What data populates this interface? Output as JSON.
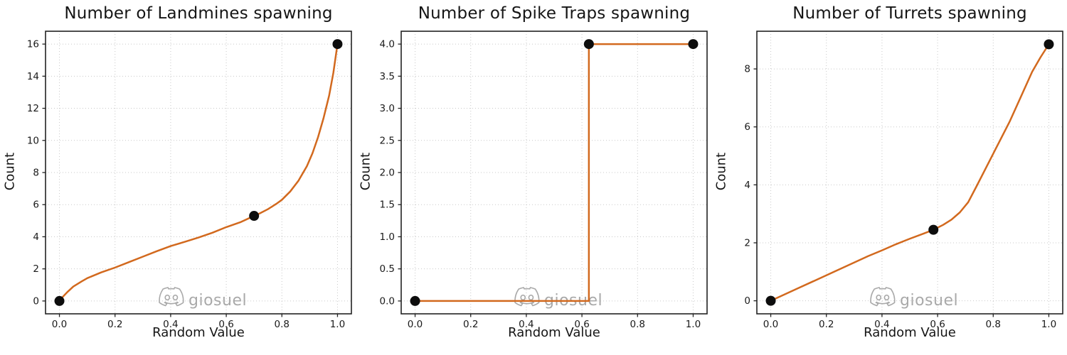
{
  "figure": {
    "watermark_label": "giosuel",
    "watermark_icon": "discord-logo"
  },
  "style": {
    "line_color": "#d2691e",
    "marker_color": "#0d0d0d",
    "grid_color": "#c9c9c9",
    "spine_color": "#222222",
    "tick_text_color": "#1a1a1a",
    "watermark_color": "#a9a9a9",
    "background": "#ffffff"
  },
  "chart_data": [
    {
      "id": "landmines",
      "type": "line",
      "title": "Number of Landmines spawning",
      "xlabel": "Random Value",
      "ylabel": "Count",
      "legend": "none",
      "grid": "dotted",
      "xlim": [
        -0.05,
        1.05
      ],
      "ylim": [
        -0.8,
        16.8
      ],
      "xticks": [
        0.0,
        0.2,
        0.4,
        0.6,
        0.8,
        1.0
      ],
      "xtick_labels": [
        "0.0",
        "0.2",
        "0.4",
        "0.6",
        "0.8",
        "1.0"
      ],
      "yticks": [
        0,
        2,
        4,
        6,
        8,
        10,
        12,
        14,
        16
      ],
      "ytick_labels": [
        "0",
        "2",
        "4",
        "6",
        "8",
        "10",
        "12",
        "14",
        "16"
      ],
      "curve": [
        [
          0,
          0
        ],
        [
          0.01,
          0.22
        ],
        [
          0.03,
          0.58
        ],
        [
          0.05,
          0.9
        ],
        [
          0.08,
          1.22
        ],
        [
          0.1,
          1.42
        ],
        [
          0.15,
          1.78
        ],
        [
          0.2,
          2.08
        ],
        [
          0.25,
          2.42
        ],
        [
          0.3,
          2.76
        ],
        [
          0.35,
          3.1
        ],
        [
          0.4,
          3.42
        ],
        [
          0.45,
          3.68
        ],
        [
          0.5,
          3.95
        ],
        [
          0.55,
          4.25
        ],
        [
          0.6,
          4.6
        ],
        [
          0.65,
          4.9
        ],
        [
          0.7,
          5.3
        ],
        [
          0.72,
          5.45
        ],
        [
          0.75,
          5.72
        ],
        [
          0.78,
          6.05
        ],
        [
          0.8,
          6.3
        ],
        [
          0.83,
          6.82
        ],
        [
          0.86,
          7.5
        ],
        [
          0.89,
          8.4
        ],
        [
          0.91,
          9.2
        ],
        [
          0.93,
          10.2
        ],
        [
          0.95,
          11.4
        ],
        [
          0.97,
          12.8
        ],
        [
          0.985,
          14.2
        ],
        [
          1.0,
          16
        ]
      ],
      "markers": [
        [
          0.0,
          0.0
        ],
        [
          0.7,
          5.3
        ],
        [
          1.0,
          16.0
        ]
      ]
    },
    {
      "id": "spike-traps",
      "type": "line",
      "title": "Number of Spike Traps spawning",
      "xlabel": "Random Value",
      "ylabel": "Count",
      "legend": "none",
      "grid": "dotted",
      "xlim": [
        -0.05,
        1.05
      ],
      "ylim": [
        -0.2,
        4.2
      ],
      "xticks": [
        0.0,
        0.2,
        0.4,
        0.6,
        0.8,
        1.0
      ],
      "xtick_labels": [
        "0.0",
        "0.2",
        "0.4",
        "0.6",
        "0.8",
        "1.0"
      ],
      "yticks": [
        0.0,
        0.5,
        1.0,
        1.5,
        2.0,
        2.5,
        3.0,
        3.5,
        4.0
      ],
      "ytick_labels": [
        "0.0",
        "0.5",
        "1.0",
        "1.5",
        "2.0",
        "2.5",
        "3.0",
        "3.5",
        "4.0"
      ],
      "curve": [
        [
          0,
          0
        ],
        [
          0.625,
          0
        ],
        [
          0.625,
          4
        ],
        [
          1,
          4
        ]
      ],
      "markers": [
        [
          0.0,
          0.0
        ],
        [
          0.625,
          4.0
        ],
        [
          1.0,
          4.0
        ]
      ]
    },
    {
      "id": "turrets",
      "type": "line",
      "title": "Number of Turrets spawning",
      "xlabel": "Random Value",
      "ylabel": "Count",
      "legend": "none",
      "grid": "dotted",
      "xlim": [
        -0.05,
        1.05
      ],
      "ylim": [
        -0.45,
        9.3
      ],
      "xticks": [
        0.0,
        0.2,
        0.4,
        0.6,
        0.8,
        1.0
      ],
      "xtick_labels": [
        "0.0",
        "0.2",
        "0.4",
        "0.6",
        "0.8",
        "1.0"
      ],
      "yticks": [
        0,
        2,
        4,
        6,
        8
      ],
      "ytick_labels": [
        "0",
        "2",
        "4",
        "6",
        "8"
      ],
      "curve": [
        [
          0,
          0
        ],
        [
          0.05,
          0.22
        ],
        [
          0.1,
          0.44
        ],
        [
          0.15,
          0.66
        ],
        [
          0.2,
          0.88
        ],
        [
          0.25,
          1.1
        ],
        [
          0.3,
          1.32
        ],
        [
          0.35,
          1.54
        ],
        [
          0.4,
          1.74
        ],
        [
          0.45,
          1.95
        ],
        [
          0.5,
          2.14
        ],
        [
          0.55,
          2.32
        ],
        [
          0.585,
          2.45
        ],
        [
          0.62,
          2.62
        ],
        [
          0.65,
          2.8
        ],
        [
          0.68,
          3.05
        ],
        [
          0.71,
          3.4
        ],
        [
          0.74,
          3.95
        ],
        [
          0.78,
          4.7
        ],
        [
          0.82,
          5.45
        ],
        [
          0.86,
          6.2
        ],
        [
          0.9,
          7.05
        ],
        [
          0.94,
          7.9
        ],
        [
          0.97,
          8.4
        ],
        [
          1.0,
          8.85
        ]
      ],
      "markers": [
        [
          0.0,
          0.0
        ],
        [
          0.585,
          2.45
        ],
        [
          1.0,
          8.85
        ]
      ]
    }
  ]
}
